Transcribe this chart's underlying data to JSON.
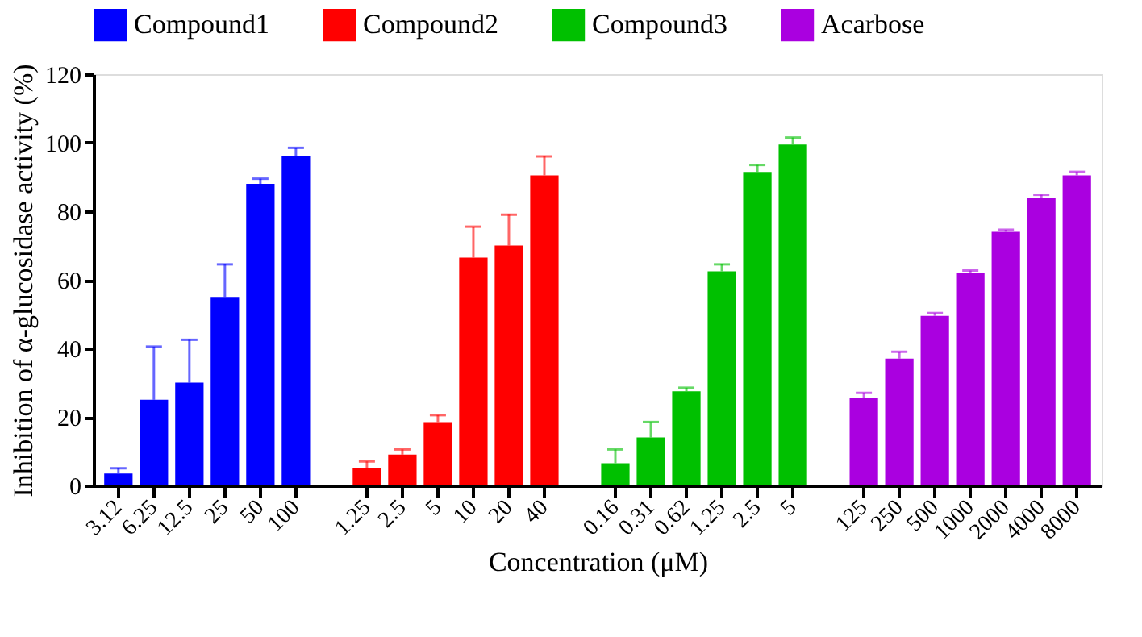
{
  "chart_data": {
    "type": "bar",
    "ylabel": "Inhibition of α-glucosidase activity (%)",
    "xlabel": "Concentration (μM)",
    "categories": [
      "3.12",
      "6.25",
      "12.5",
      "25",
      "50",
      "100",
      "1.25",
      "2.5",
      "5",
      "10",
      "20",
      "40",
      "0.16",
      "0.31",
      "0.62",
      "1.25",
      "2.5",
      "5",
      "125",
      "250",
      "500",
      "1000",
      "2000",
      "4000",
      "8000"
    ],
    "series": [
      {
        "name": "Compound1",
        "color": "#0000ff",
        "values": [
          3.5,
          25,
          30,
          55,
          88,
          96,
          null,
          null,
          null,
          null,
          null,
          null,
          null,
          null,
          null,
          null,
          null,
          null,
          null,
          null,
          null,
          null,
          null,
          null,
          null
        ],
        "errors": [
          1.5,
          15.5,
          12.5,
          9.5,
          1.5,
          2.5,
          null,
          null,
          null,
          null,
          null,
          null,
          null,
          null,
          null,
          null,
          null,
          null,
          null,
          null,
          null,
          null,
          null,
          null,
          null
        ]
      },
      {
        "name": "Compound2",
        "color": "#ff0000",
        "values": [
          null,
          null,
          null,
          null,
          null,
          null,
          5,
          9,
          18.5,
          66.5,
          70,
          90.5,
          null,
          null,
          null,
          null,
          null,
          null,
          null,
          null,
          null,
          null,
          null,
          null,
          null
        ],
        "errors": [
          null,
          null,
          null,
          null,
          null,
          null,
          2,
          1.5,
          2,
          9,
          9,
          5.5,
          null,
          null,
          null,
          null,
          null,
          null,
          null,
          null,
          null,
          null,
          null,
          null,
          null
        ]
      },
      {
        "name": "Compound3",
        "color": "#00c000",
        "values": [
          null,
          null,
          null,
          null,
          null,
          null,
          null,
          null,
          null,
          null,
          null,
          null,
          6.5,
          14,
          27.5,
          62.5,
          91.5,
          99.5,
          null,
          null,
          null,
          null,
          null,
          null,
          null
        ],
        "errors": [
          null,
          null,
          null,
          null,
          null,
          null,
          null,
          null,
          null,
          null,
          null,
          null,
          4,
          4.5,
          1,
          2,
          2,
          2,
          null,
          null,
          null,
          null,
          null,
          null,
          null
        ]
      },
      {
        "name": "Acarbose",
        "color": "#aa00e0",
        "values": [
          null,
          null,
          null,
          null,
          null,
          null,
          null,
          null,
          null,
          null,
          null,
          null,
          null,
          null,
          null,
          null,
          null,
          null,
          25.5,
          37,
          49.5,
          62,
          74,
          84,
          90.5
        ],
        "errors": [
          null,
          null,
          null,
          null,
          null,
          null,
          null,
          null,
          null,
          null,
          null,
          null,
          null,
          null,
          null,
          null,
          null,
          null,
          1.5,
          2,
          0.8,
          0.7,
          0.6,
          0.8,
          1
        ]
      }
    ],
    "ylim": [
      0,
      120
    ],
    "yticks": [
      0,
      20,
      40,
      60,
      80,
      100,
      120
    ],
    "grid": false,
    "legend": "top"
  }
}
